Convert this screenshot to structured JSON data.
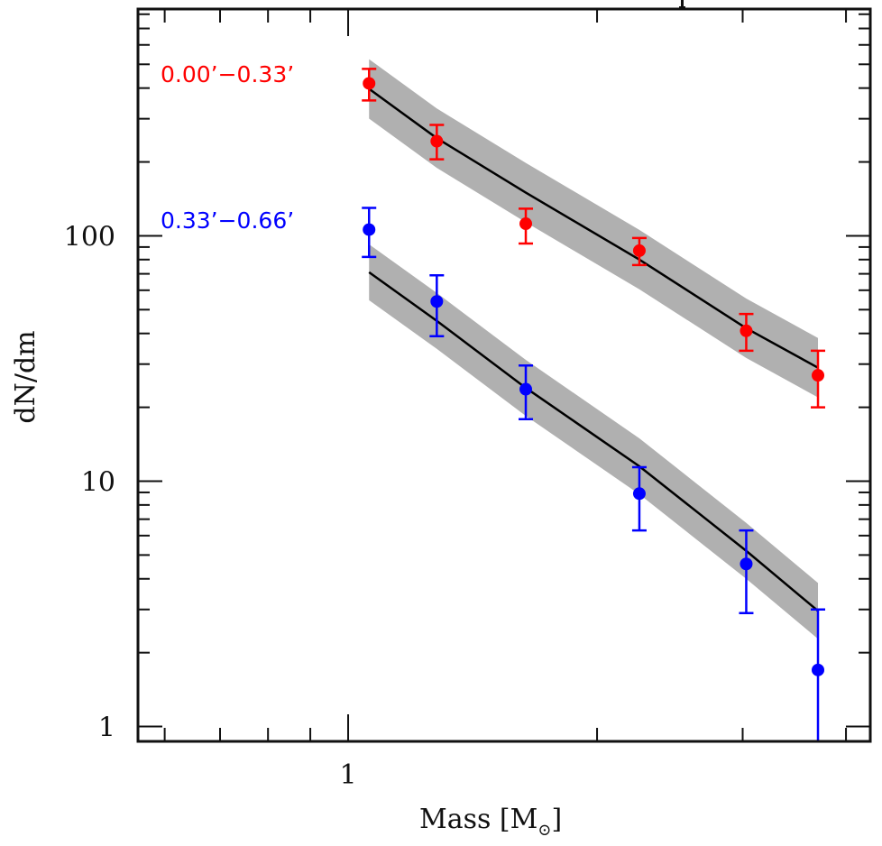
{
  "chart_data": {
    "type": "scatter",
    "title": "",
    "xlabel": "Mass [M⊙]",
    "xlabel_main": "Mass [M",
    "xlabel_sub": "⊙",
    "xlabel_close": "]",
    "ylabel": "dN/dm",
    "xscale": "log",
    "yscale": "log",
    "xlim": [
      0.557,
      4.28
    ],
    "ylim": [
      0.87,
      840
    ],
    "x_major_ticks": [
      1
    ],
    "x_tick_labels": [
      "1"
    ],
    "x_minor_ticks": [
      0.6,
      0.7,
      0.8,
      0.9,
      2,
      3,
      4
    ],
    "y_major_ticks": [
      1,
      10,
      100
    ],
    "y_tick_labels": [
      "1",
      "10",
      "100"
    ],
    "y_minor_ticks": [
      2,
      3,
      4,
      5,
      6,
      7,
      8,
      9,
      20,
      30,
      40,
      50,
      60,
      70,
      80,
      90,
      200,
      300,
      400,
      500,
      600,
      700,
      800
    ],
    "grid": false,
    "legend": "top-left (inline text labels)",
    "series": [
      {
        "name": "0.00′−0.33′",
        "label": "0.00’−0.33’",
        "color": "#ff0000",
        "x": [
          1.06,
          1.28,
          1.64,
          2.25,
          3.03,
          3.7
        ],
        "y": [
          418,
          243,
          112,
          87,
          41,
          27
        ],
        "y_err_upper": [
          479,
          283,
          129,
          98,
          48,
          34
        ],
        "y_err_lower": [
          356,
          205,
          93,
          76,
          34,
          20
        ],
        "model": {
          "x": [
            1.06,
            1.28,
            1.64,
            2.25,
            3.03,
            3.7
          ],
          "y": [
            397,
            250,
            150,
            80,
            42,
            29
          ],
          "band_dex": 0.121,
          "line_color": "#000000",
          "band_color": "#b0b0b0"
        }
      },
      {
        "name": "0.33′−0.66′",
        "label": "0.33’−0.66’",
        "color": "#0000ff",
        "x": [
          1.06,
          1.28,
          1.64,
          2.25,
          3.03,
          3.7
        ],
        "y": [
          106,
          54,
          23.7,
          8.9,
          4.6,
          1.7
        ],
        "y_err_upper": [
          130,
          69,
          29.6,
          11.4,
          6.3,
          3.0
        ],
        "y_err_lower": [
          82,
          39,
          17.9,
          6.3,
          2.9,
          0.5
        ],
        "model": {
          "x": [
            1.06,
            1.28,
            1.64,
            2.25,
            3.03,
            3.7
          ],
          "y": [
            71,
            45,
            24,
            11.5,
            5.2,
            2.96
          ],
          "band_dex": 0.114,
          "line_color": "#000000",
          "band_color": "#b0b0b0"
        }
      }
    ]
  }
}
